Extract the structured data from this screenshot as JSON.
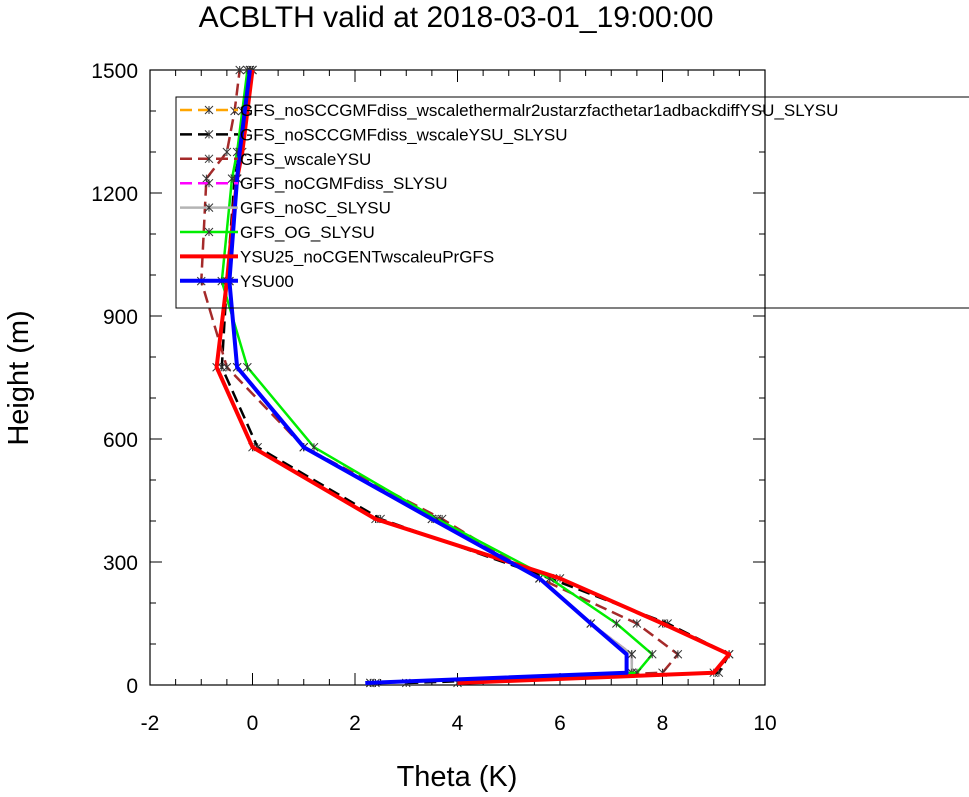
{
  "chart_data": {
    "type": "line",
    "title": "ACBLTH valid at 2018-03-01_19:00:00",
    "xlabel": "Theta (K)",
    "ylabel": "Height (m)",
    "xlim": [
      -2,
      10
    ],
    "ylim": [
      0,
      1500
    ],
    "xticks": [
      "-2",
      "0",
      "2",
      "4",
      "6",
      "8",
      "10"
    ],
    "yticks": [
      "0",
      "300",
      "600",
      "900",
      "1200",
      "1500"
    ],
    "legend_position": "top-right",
    "series": [
      {
        "name": "GFS_noSCCGMFdiss_wscalethermalr2ustarzfacthetar1adbackdiffYSU_SLYSU",
        "color": "#ffa500",
        "dash": "dashed",
        "marker": "star",
        "x": [
          4.0,
          9.0,
          9.3,
          8.0,
          6.0,
          2.4,
          0.0,
          -0.7,
          -0.5,
          -0.3,
          -0.2,
          -0.1,
          0.0
        ],
        "y": [
          5,
          30,
          75,
          150,
          260,
          405,
          580,
          775,
          985,
          1235,
          1300,
          1400,
          1500
        ]
      },
      {
        "name": "GFS_noSCCGMFdiss_wscaleYSU_SLYSU",
        "color": "#000000",
        "dash": "dashed",
        "marker": "star",
        "x": [
          3.0,
          9.1,
          9.3,
          8.1,
          5.8,
          2.5,
          0.1,
          -0.6,
          -0.5,
          -0.35,
          -0.25,
          -0.1,
          0.0
        ],
        "y": [
          5,
          30,
          75,
          150,
          260,
          405,
          580,
          775,
          985,
          1235,
          1300,
          1400,
          1500
        ]
      },
      {
        "name": "GFS_wscaleYSU",
        "color": "#a52a2a",
        "dash": "dashed",
        "marker": "star",
        "x": [
          2.4,
          8.0,
          8.3,
          7.5,
          5.6,
          3.7,
          1.0,
          -0.5,
          -1.0,
          -0.9,
          -0.5,
          -0.35,
          -0.25
        ],
        "y": [
          5,
          30,
          75,
          150,
          260,
          405,
          580,
          775,
          985,
          1235,
          1300,
          1400,
          1500
        ]
      },
      {
        "name": "GFS_noCGMFdiss_SLYSU",
        "color": "#ff00ff",
        "dash": "dashed",
        "marker": "star",
        "x": [
          2.3,
          7.4,
          7.4,
          6.6,
          5.6,
          3.5,
          1.0,
          -0.3,
          -0.45,
          -0.3,
          -0.25,
          -0.15,
          -0.05
        ],
        "y": [
          5,
          30,
          75,
          150,
          260,
          405,
          580,
          775,
          985,
          1235,
          1300,
          1400,
          1500
        ]
      },
      {
        "name": "GFS_noSC_SLYSU",
        "color": "#b4b4b4",
        "dash": "solid",
        "marker": "star",
        "x": [
          2.3,
          7.4,
          7.4,
          6.6,
          5.6,
          3.5,
          1.0,
          -0.3,
          -0.45,
          -0.3,
          -0.25,
          -0.15,
          -0.05
        ],
        "y": [
          5,
          30,
          75,
          150,
          260,
          405,
          580,
          775,
          985,
          1235,
          1300,
          1400,
          1500
        ]
      },
      {
        "name": "GFS_OG_SLYSU",
        "color": "#00ee00",
        "dash": "solid",
        "marker": "star",
        "x": [
          2.3,
          7.5,
          7.8,
          7.1,
          5.8,
          3.6,
          1.2,
          -0.1,
          -0.6,
          -0.4,
          -0.3,
          -0.2,
          -0.1
        ],
        "y": [
          5,
          30,
          75,
          150,
          260,
          405,
          580,
          775,
          985,
          1235,
          1300,
          1400,
          1500
        ]
      },
      {
        "name": "YSU25_noCGENTwscaleuPrGFS",
        "color": "#ff0000",
        "dash": "solid",
        "marker": "none",
        "x": [
          4.0,
          9.0,
          9.3,
          8.0,
          6.0,
          2.4,
          0.0,
          -0.7,
          -0.5,
          -0.3,
          -0.2,
          -0.1,
          0.0
        ],
        "y": [
          5,
          30,
          75,
          150,
          260,
          405,
          580,
          775,
          985,
          1235,
          1300,
          1400,
          1500
        ]
      },
      {
        "name": "YSU00",
        "color": "#0000ff",
        "dash": "solid",
        "marker": "none",
        "x": [
          2.2,
          7.3,
          7.3,
          6.6,
          5.6,
          3.5,
          1.0,
          -0.3,
          -0.45,
          -0.3,
          -0.25,
          -0.15,
          -0.05
        ],
        "y": [
          5,
          30,
          75,
          150,
          260,
          405,
          580,
          775,
          985,
          1235,
          1300,
          1400,
          1500
        ]
      }
    ]
  }
}
